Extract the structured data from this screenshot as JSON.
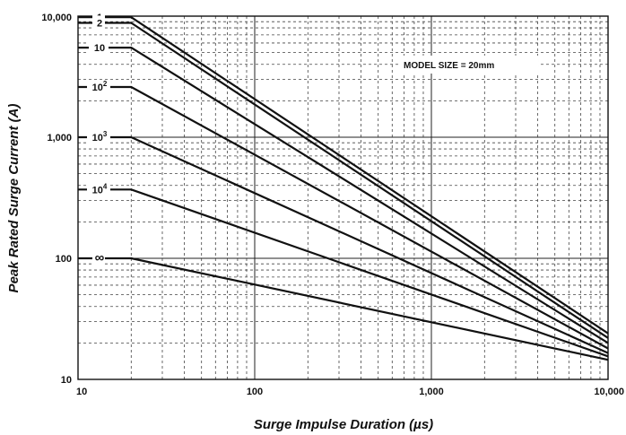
{
  "chart_data": {
    "type": "line",
    "xscale": "log",
    "yscale": "log",
    "xlabel": "Surge Impulse Duration (µs)",
    "ylabel": "Peak Rated Surge Current (A)",
    "xlim": [
      10,
      10000
    ],
    "ylim": [
      10,
      10000
    ],
    "x_ticks": [
      {
        "value": 10,
        "label": "10"
      },
      {
        "value": 100,
        "label": "100"
      },
      {
        "value": 1000,
        "label": "1,000"
      },
      {
        "value": 10000,
        "label": "10,000"
      }
    ],
    "y_ticks": [
      {
        "value": 10,
        "label": "10"
      },
      {
        "value": 100,
        "label": "100"
      },
      {
        "value": 1000,
        "label": "1,000"
      },
      {
        "value": 10000,
        "label": "10,000"
      }
    ],
    "annotation": "MODEL SIZE = 20mm",
    "grid": true,
    "series": [
      {
        "base": "1",
        "exp": "",
        "x": [
          10,
          20,
          10000
        ],
        "y": [
          9800,
          9800,
          24
        ]
      },
      {
        "base": "2",
        "exp": "",
        "x": [
          10,
          20,
          10000
        ],
        "y": [
          8800,
          8800,
          22
        ]
      },
      {
        "base": "10",
        "exp": "",
        "x": [
          10,
          20,
          10000
        ],
        "y": [
          5500,
          5500,
          20
        ]
      },
      {
        "base": "10",
        "exp": "2",
        "x": [
          10,
          20,
          10000
        ],
        "y": [
          2600,
          2600,
          18
        ]
      },
      {
        "base": "10",
        "exp": "3",
        "x": [
          10,
          20,
          10000
        ],
        "y": [
          1000,
          1000,
          16.5
        ]
      },
      {
        "base": "10",
        "exp": "4",
        "x": [
          10,
          20,
          10000
        ],
        "y": [
          370,
          370,
          15.5
        ]
      },
      {
        "base": "∞",
        "exp": "",
        "x": [
          10,
          20,
          10000
        ],
        "y": [
          100,
          100,
          14.5
        ]
      }
    ]
  }
}
